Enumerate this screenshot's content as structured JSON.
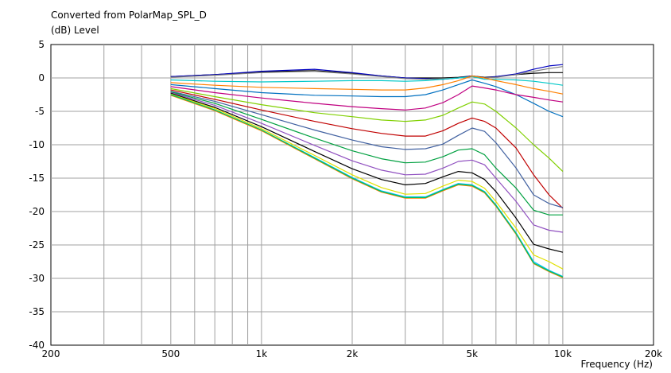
{
  "chart_data": {
    "type": "line",
    "title": "Converted from PolarMap_SPL_D",
    "ylabel": "(dB)  Level",
    "xlabel": "Frequency  (Hz)",
    "xscale": "log",
    "xlim": [
      200,
      20000
    ],
    "ylim": [
      -40,
      5
    ],
    "grid": true,
    "x_ticks": [
      {
        "value": 200,
        "label": "200"
      },
      {
        "value": 500,
        "label": "500"
      },
      {
        "value": 1000,
        "label": "1k"
      },
      {
        "value": 2000,
        "label": "2k"
      },
      {
        "value": 5000,
        "label": "5k"
      },
      {
        "value": 10000,
        "label": "10k"
      },
      {
        "value": 20000,
        "label": "20k"
      }
    ],
    "y_ticks": [
      5,
      0,
      -5,
      -10,
      -15,
      -20,
      -25,
      -30,
      -35,
      -40
    ],
    "x": [
      500,
      700,
      1000,
      1500,
      2000,
      2500,
      3000,
      3500,
      4000,
      4500,
      5000,
      5500,
      6000,
      7000,
      8000,
      9000,
      10000
    ],
    "series": [
      {
        "color": "#000000",
        "values": [
          0.2,
          0.5,
          0.9,
          1.1,
          0.7,
          0.3,
          0.0,
          0.0,
          0.0,
          0.1,
          0.3,
          0.1,
          0.2,
          0.5,
          0.7,
          0.8,
          0.8
        ]
      },
      {
        "color": "#0000c0",
        "values": [
          0.2,
          0.5,
          1.0,
          1.3,
          0.8,
          0.3,
          0.0,
          -0.1,
          -0.2,
          0.0,
          0.3,
          0.0,
          0.2,
          0.6,
          1.3,
          1.8,
          2.0
        ]
      },
      {
        "color": "#808080",
        "values": [
          0.1,
          0.4,
          0.8,
          1.0,
          0.6,
          0.2,
          -0.1,
          -0.2,
          -0.1,
          0.0,
          0.2,
          0.0,
          0.1,
          0.5,
          1.0,
          1.4,
          1.7
        ]
      },
      {
        "color": "#00c8c8",
        "values": [
          -0.3,
          -0.5,
          -0.6,
          -0.5,
          -0.4,
          -0.4,
          -0.5,
          -0.4,
          -0.2,
          0.0,
          0.2,
          -0.2,
          -0.2,
          -0.3,
          -0.5,
          -0.8,
          -1.1
        ]
      },
      {
        "color": "#ff8000",
        "values": [
          -0.7,
          -1.1,
          -1.4,
          -1.6,
          -1.7,
          -1.8,
          -1.8,
          -1.5,
          -1.0,
          -0.4,
          0.3,
          0.0,
          -0.4,
          -1.0,
          -1.6,
          -2.0,
          -2.4
        ]
      },
      {
        "color": "#0070c0",
        "values": [
          -1.0,
          -1.6,
          -2.2,
          -2.6,
          -2.7,
          -2.8,
          -2.8,
          -2.5,
          -1.8,
          -1.0,
          -0.3,
          -0.8,
          -1.3,
          -2.5,
          -3.8,
          -5.0,
          -5.8
        ]
      },
      {
        "color": "#c00080",
        "values": [
          -1.3,
          -2.2,
          -3.0,
          -3.8,
          -4.3,
          -4.6,
          -4.8,
          -4.5,
          -3.7,
          -2.5,
          -1.2,
          -1.5,
          -1.8,
          -2.5,
          -2.9,
          -3.3,
          -3.6
        ]
      },
      {
        "color": "#80d000",
        "values": [
          -1.6,
          -2.8,
          -4.0,
          -5.2,
          -5.8,
          -6.3,
          -6.5,
          -6.3,
          -5.6,
          -4.5,
          -3.6,
          -3.9,
          -5.0,
          -7.5,
          -10.0,
          -12.0,
          -14.0
        ]
      },
      {
        "color": "#c00000",
        "values": [
          -1.8,
          -3.2,
          -4.8,
          -6.5,
          -7.6,
          -8.3,
          -8.7,
          -8.7,
          -7.9,
          -6.8,
          -6.0,
          -6.5,
          -7.5,
          -10.5,
          -14.5,
          -17.5,
          -19.5
        ]
      },
      {
        "color": "#4060a0",
        "values": [
          -2.0,
          -3.5,
          -5.5,
          -7.8,
          -9.3,
          -10.3,
          -10.7,
          -10.6,
          -9.9,
          -8.6,
          -7.5,
          -8.0,
          -9.7,
          -13.5,
          -17.5,
          -18.8,
          -19.4
        ]
      },
      {
        "color": "#00a040",
        "values": [
          -2.1,
          -3.8,
          -6.2,
          -9.0,
          -10.9,
          -12.1,
          -12.7,
          -12.6,
          -11.8,
          -10.8,
          -10.6,
          -11.5,
          -13.5,
          -16.5,
          -19.8,
          -20.5,
          -20.5
        ]
      },
      {
        "color": "#9050c0",
        "values": [
          -2.2,
          -4.1,
          -6.8,
          -10.1,
          -12.4,
          -13.8,
          -14.5,
          -14.4,
          -13.5,
          -12.5,
          -12.3,
          -13.0,
          -15.0,
          -18.5,
          -22.0,
          -22.8,
          -23.1
        ]
      },
      {
        "color": "#000000",
        "values": [
          -2.3,
          -4.4,
          -7.3,
          -11.0,
          -13.6,
          -15.2,
          -16.0,
          -15.8,
          -14.8,
          -14.0,
          -14.2,
          -15.2,
          -17.0,
          -21.0,
          -24.9,
          -25.6,
          -26.1
        ]
      },
      {
        "color": "#e0e000",
        "values": [
          -2.4,
          -4.6,
          -7.6,
          -11.6,
          -14.5,
          -16.4,
          -17.4,
          -17.3,
          -16.2,
          -15.3,
          -15.5,
          -16.5,
          -18.5,
          -22.5,
          -26.5,
          -27.5,
          -28.6
        ]
      },
      {
        "color": "#00c0ff",
        "values": [
          -2.5,
          -4.8,
          -7.8,
          -11.9,
          -14.9,
          -16.9,
          -17.8,
          -17.8,
          -16.7,
          -15.8,
          -16.0,
          -17.0,
          -19.0,
          -23.2,
          -27.5,
          -28.8,
          -29.7
        ]
      },
      {
        "color": "#ff8000",
        "values": [
          -2.6,
          -4.9,
          -7.9,
          -12.1,
          -15.1,
          -17.1,
          -18.0,
          -18.0,
          -16.9,
          -16.0,
          -16.2,
          -17.2,
          -19.2,
          -23.4,
          -27.8,
          -29.0,
          -29.9
        ]
      },
      {
        "color": "#00c060",
        "values": [
          -2.5,
          -4.8,
          -7.8,
          -12.0,
          -15.0,
          -17.0,
          -17.9,
          -17.9,
          -16.8,
          -15.9,
          -16.1,
          -17.1,
          -19.1,
          -23.3,
          -27.7,
          -28.9,
          -29.8
        ]
      }
    ]
  }
}
